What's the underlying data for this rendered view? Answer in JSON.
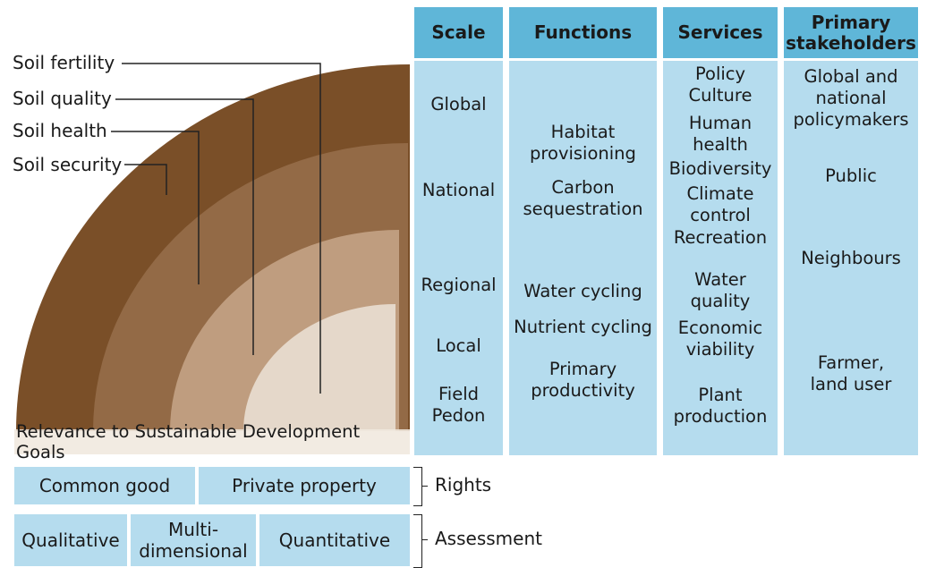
{
  "arc_labels": [
    "Soil fertility",
    "Soil quality",
    "Soil health",
    "Soil security"
  ],
  "caption": "Relevance to Sustainable Development Goals",
  "colors": {
    "arc_outer": "#7a4f28",
    "arc_2": "#936a46",
    "arc_3": "#bf9d7f",
    "arc_inner": "#e5d8ca",
    "header_blue": "#5fb6d8",
    "body_blue": "#b5dcee"
  },
  "columns": {
    "scale": {
      "header": "Scale",
      "items": [
        "Global",
        "National",
        "Regional",
        "Local",
        "Field\nPedon"
      ]
    },
    "functions": {
      "header": "Functions",
      "items": [
        "Habitat\nprovisioning",
        "Carbon\nsequestration",
        "Water cycling",
        "Nutrient cycling",
        "Primary\nproductivity"
      ]
    },
    "services": {
      "header": "Services",
      "items": [
        "Policy\nCulture",
        "Human\nhealth",
        "Biodiversity",
        "Climate\ncontrol",
        "Recreation",
        "Water\nquality",
        "Economic\nviability",
        "Plant\nproduction"
      ]
    },
    "stakeholders": {
      "header": "Primary\nstakeholders",
      "items": [
        "Global and\nnational\npolicymakers",
        "Public",
        "Neighbours",
        "Farmer,\nland user"
      ]
    }
  },
  "rights": {
    "label": "Rights",
    "items": [
      "Common good",
      "Private property"
    ]
  },
  "assessment": {
    "label": "Assessment",
    "items": [
      "Qualitative",
      "Multi-\ndimensional",
      "Quantitative"
    ]
  }
}
